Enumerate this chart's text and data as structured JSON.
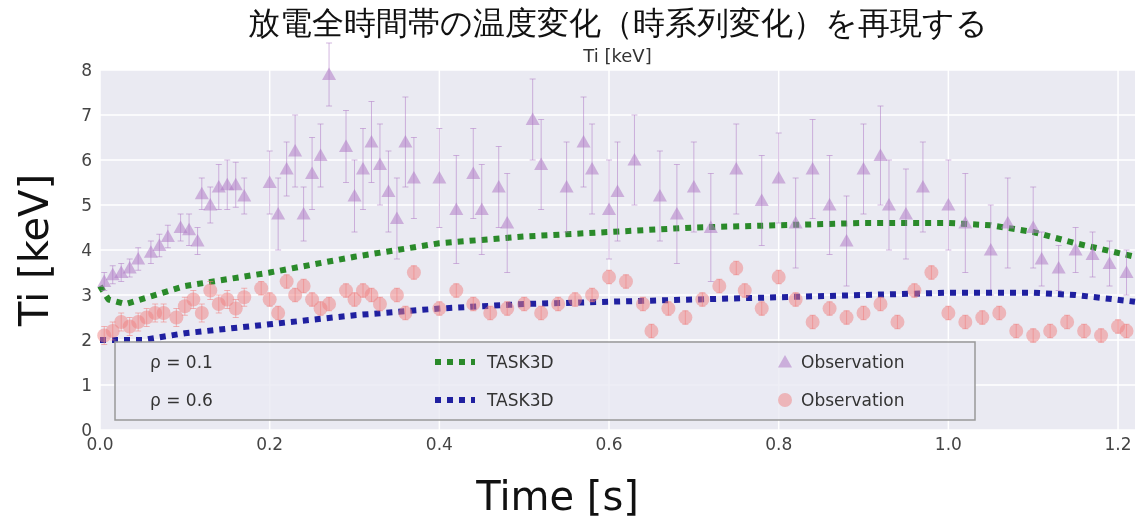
{
  "chart_data": {
    "type": "scatter",
    "title": "放電全時間帯の温度変化（時系列変化）を再現する",
    "subtitle": "Ti [keV]",
    "xlabel": "Time [s]",
    "ylabel": "Ti [keV]",
    "xlim": [
      0,
      1.22
    ],
    "ylim": [
      0,
      8
    ],
    "xticks": [
      {
        "value": 0,
        "label": "0.0"
      },
      {
        "value": 0.2,
        "label": "0.2"
      },
      {
        "value": 0.4,
        "label": "0.4"
      },
      {
        "value": 0.6,
        "label": "0.6"
      },
      {
        "value": 0.8,
        "label": "0.8"
      },
      {
        "value": 1.0,
        "label": "1.0"
      },
      {
        "value": 1.2,
        "label": "1.2"
      }
    ],
    "yticks": [
      0,
      1,
      2,
      3,
      4,
      5,
      6,
      7,
      8
    ],
    "grid": true,
    "legend": "bottom left",
    "annotations": [
      "ρ = 0.1",
      "ρ = 0.6"
    ],
    "series": [
      {
        "name": "TASK3D",
        "type": "line",
        "color": "#2a8a2a",
        "line_style": "dotted",
        "marker": "none",
        "x": [
          0,
          0.01,
          0.03,
          0.1,
          0.2,
          0.3,
          0.4,
          0.5,
          0.6,
          0.7,
          0.8,
          0.9,
          1.0,
          1.05,
          1.1,
          1.15,
          1.22
        ],
        "values": [
          3.2,
          2.9,
          2.8,
          3.2,
          3.5,
          3.85,
          4.15,
          4.3,
          4.4,
          4.5,
          4.55,
          4.6,
          4.6,
          4.55,
          4.4,
          4.15,
          3.85
        ]
      },
      {
        "name": "Observation",
        "color": "#b07cc6",
        "marker": "triangle",
        "x": [
          0.005,
          0.015,
          0.025,
          0.035,
          0.045,
          0.06,
          0.07,
          0.08,
          0.095,
          0.105,
          0.115,
          0.12,
          0.13,
          0.14,
          0.15,
          0.16,
          0.17,
          0.2,
          0.21,
          0.22,
          0.23,
          0.24,
          0.25,
          0.26,
          0.27,
          0.29,
          0.3,
          0.31,
          0.32,
          0.33,
          0.34,
          0.35,
          0.36,
          0.37,
          0.4,
          0.42,
          0.44,
          0.45,
          0.47,
          0.48,
          0.51,
          0.52,
          0.55,
          0.57,
          0.58,
          0.6,
          0.61,
          0.63,
          0.66,
          0.68,
          0.7,
          0.72,
          0.75,
          0.78,
          0.8,
          0.82,
          0.84,
          0.86,
          0.88,
          0.9,
          0.92,
          0.93,
          0.95,
          0.97,
          1.0,
          1.02,
          1.05,
          1.07,
          1.1,
          1.11,
          1.13,
          1.15,
          1.17,
          1.19,
          1.21
        ],
        "values": [
          3.3,
          3.45,
          3.5,
          3.6,
          3.8,
          3.95,
          4.1,
          4.3,
          4.5,
          4.45,
          4.2,
          5.25,
          5.0,
          5.4,
          5.45,
          5.45,
          5.2,
          5.5,
          4.8,
          5.8,
          6.2,
          4.8,
          5.7,
          6.1,
          7.9,
          6.3,
          5.2,
          5.8,
          6.4,
          5.9,
          5.3,
          4.7,
          6.4,
          5.6,
          5.6,
          4.9,
          5.7,
          4.9,
          5.4,
          4.6,
          6.9,
          5.9,
          5.4,
          6.4,
          5.8,
          4.9,
          5.3,
          6.0,
          5.2,
          4.8,
          5.4,
          4.5,
          5.8,
          5.1,
          5.6,
          4.6,
          5.8,
          5.0,
          4.2,
          5.8,
          6.1,
          5.0,
          4.8,
          5.4,
          5.0,
          4.6,
          4.0,
          4.6,
          4.5,
          3.8,
          3.6,
          4.0,
          3.9,
          3.7,
          3.5
        ],
        "errors": [
          0.2,
          0.2,
          0.2,
          0.2,
          0.25,
          0.25,
          0.25,
          0.25,
          0.3,
          0.35,
          0.3,
          0.35,
          0.4,
          0.5,
          0.55,
          0.5,
          0.4,
          0.7,
          0.8,
          0.6,
          0.8,
          0.6,
          0.8,
          0.7,
          0.7,
          0.8,
          0.8,
          0.9,
          0.9,
          0.9,
          0.9,
          0.9,
          1.0,
          0.9,
          1.1,
          1.2,
          1.0,
          1.0,
          0.9,
          1.1,
          0.9,
          1.0,
          1.0,
          1.0,
          1.0,
          1.1,
          1.1,
          1.0,
          1.0,
          1.1,
          1.0,
          1.2,
          1.0,
          1.0,
          1.0,
          1.0,
          1.1,
          1.1,
          1.0,
          1.0,
          1.1,
          1.0,
          1.0,
          1.0,
          1.0,
          1.1,
          1.0,
          1.0,
          0.9,
          0.6,
          0.5,
          0.5,
          0.5,
          0.5,
          0.5
        ]
      },
      {
        "name": "TASK3D",
        "type": "line",
        "color": "#2020a0",
        "line_style": "dotted",
        "marker": "none",
        "x": [
          0,
          0.05,
          0.1,
          0.2,
          0.3,
          0.4,
          0.5,
          0.6,
          0.7,
          0.8,
          0.9,
          1.0,
          1.1,
          1.15,
          1.22
        ],
        "values": [
          2.0,
          2.0,
          2.15,
          2.35,
          2.55,
          2.7,
          2.8,
          2.85,
          2.9,
          2.95,
          3.0,
          3.05,
          3.05,
          3.0,
          2.85
        ]
      },
      {
        "name": "Observation",
        "color": "#f08080",
        "marker": "circle",
        "x": [
          0.005,
          0.015,
          0.025,
          0.035,
          0.045,
          0.055,
          0.065,
          0.075,
          0.09,
          0.1,
          0.11,
          0.12,
          0.13,
          0.14,
          0.15,
          0.16,
          0.17,
          0.19,
          0.2,
          0.21,
          0.22,
          0.23,
          0.24,
          0.25,
          0.26,
          0.27,
          0.29,
          0.3,
          0.31,
          0.32,
          0.33,
          0.35,
          0.36,
          0.37,
          0.4,
          0.42,
          0.44,
          0.46,
          0.48,
          0.5,
          0.52,
          0.54,
          0.56,
          0.58,
          0.6,
          0.62,
          0.64,
          0.65,
          0.67,
          0.69,
          0.71,
          0.73,
          0.75,
          0.76,
          0.78,
          0.8,
          0.82,
          0.84,
          0.86,
          0.88,
          0.9,
          0.92,
          0.94,
          0.96,
          0.98,
          1.0,
          1.02,
          1.04,
          1.06,
          1.08,
          1.1,
          1.12,
          1.14,
          1.16,
          1.18,
          1.2,
          1.21
        ],
        "values": [
          2.1,
          2.2,
          2.4,
          2.3,
          2.4,
          2.5,
          2.6,
          2.6,
          2.5,
          2.75,
          2.9,
          2.6,
          3.1,
          2.8,
          2.9,
          2.7,
          2.95,
          3.15,
          2.9,
          2.6,
          3.3,
          3.0,
          3.2,
          2.9,
          2.7,
          2.8,
          3.1,
          2.9,
          3.1,
          3.0,
          2.8,
          3.0,
          2.6,
          3.5,
          2.7,
          3.1,
          2.8,
          2.6,
          2.7,
          2.8,
          2.6,
          2.8,
          2.9,
          3.0,
          3.4,
          3.3,
          2.8,
          2.2,
          2.7,
          2.5,
          2.9,
          3.2,
          3.6,
          3.1,
          2.7,
          3.4,
          2.9,
          2.4,
          2.7,
          2.5,
          2.6,
          2.8,
          2.4,
          3.1,
          3.5,
          2.6,
          2.4,
          2.5,
          2.6,
          2.2,
          2.1,
          2.2,
          2.4,
          2.2,
          2.1,
          2.3,
          2.2
        ],
        "errors": [
          0.2,
          0.2,
          0.2,
          0.2,
          0.2,
          0.2,
          0.2,
          0.2,
          0.2,
          0.2,
          0.2,
          0.2,
          0.2,
          0.2,
          0.2,
          0.2,
          0.2,
          0.15,
          0.15,
          0.15,
          0.15,
          0.15,
          0.15,
          0.15,
          0.15,
          0.15,
          0.15,
          0.15,
          0.15,
          0.15,
          0.15,
          0.15,
          0.15,
          0.15,
          0.15,
          0.15,
          0.15,
          0.15,
          0.15,
          0.15,
          0.15,
          0.15,
          0.15,
          0.15,
          0.15,
          0.15,
          0.15,
          0.15,
          0.15,
          0.15,
          0.15,
          0.15,
          0.15,
          0.15,
          0.15,
          0.15,
          0.15,
          0.15,
          0.15,
          0.15,
          0.15,
          0.15,
          0.15,
          0.15,
          0.15,
          0.15,
          0.15,
          0.15,
          0.15,
          0.15,
          0.15,
          0.15,
          0.15,
          0.15,
          0.15,
          0.15,
          0.15
        ]
      }
    ]
  }
}
